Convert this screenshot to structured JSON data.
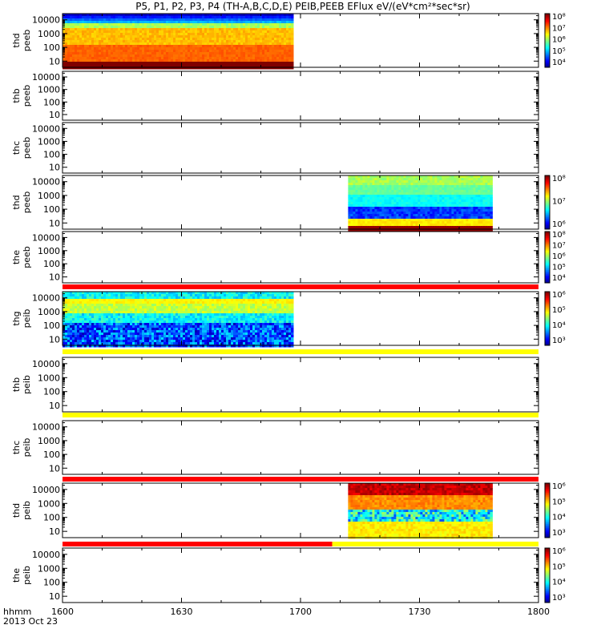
{
  "chart_data": {
    "type": "heatmap",
    "title": "P5, P1, P2, P3, P4 (TH-A,B,C,D,E) PEIB,PEEB EFlux eV/(eV*cm²*sec*sr)",
    "x_ticks": [
      "1600",
      "1630",
      "1700",
      "1730",
      "1800"
    ],
    "x_range": [
      "16:00",
      "18:00"
    ],
    "x_axis_label": "hhmm",
    "date_label": "2013 Oct 23",
    "y_ticks": [
      "10",
      "100",
      "1000",
      "10000"
    ],
    "y_scale": "log",
    "panels": [
      {
        "label": [
          "thd",
          "peeb"
        ],
        "data_time_range": [
          "16:00",
          "16:58"
        ],
        "colorbar": [
          "10⁴",
          "10⁵",
          "10⁶",
          "10⁷",
          "10⁸"
        ],
        "status_bar": null
      },
      {
        "label": [
          "thb",
          "peeb"
        ],
        "data_time_range": null,
        "colorbar": null,
        "status_bar": null
      },
      {
        "label": [
          "thc",
          "peeb"
        ],
        "data_time_range": null,
        "colorbar": null,
        "status_bar": null
      },
      {
        "label": [
          "thd",
          "peeb"
        ],
        "data_time_range": [
          "17:12",
          "17:48"
        ],
        "colorbar": [
          "10⁶",
          "10⁷",
          "10⁸"
        ],
        "status_bar": null
      },
      {
        "label": [
          "the",
          "peeb"
        ],
        "data_time_range": null,
        "colorbar": [
          "10⁴",
          "10⁵",
          "10⁶",
          "10⁷",
          "10⁸"
        ],
        "status_bar": "red"
      },
      {
        "label": [
          "thg",
          "peib"
        ],
        "data_time_range": [
          "16:00",
          "16:58"
        ],
        "colorbar": [
          "10³",
          "10⁴",
          "10⁵",
          "10⁶"
        ],
        "status_bar": "yellow"
      },
      {
        "label": [
          "thb",
          "peib"
        ],
        "data_time_range": null,
        "colorbar": null,
        "status_bar": "yellow"
      },
      {
        "label": [
          "thc",
          "peib"
        ],
        "data_time_range": null,
        "colorbar": null,
        "status_bar": "red"
      },
      {
        "label": [
          "thd",
          "peib"
        ],
        "data_time_range": [
          "17:12",
          "17:48"
        ],
        "colorbar": [
          "10³",
          "10⁴",
          "10⁵",
          "10⁶"
        ],
        "status_bar": "red-then-yellow"
      },
      {
        "label": [
          "the",
          "peib"
        ],
        "data_time_range": null,
        "colorbar": [
          "10³",
          "10⁴",
          "10⁵",
          "10⁶"
        ],
        "status_bar": null
      }
    ]
  }
}
